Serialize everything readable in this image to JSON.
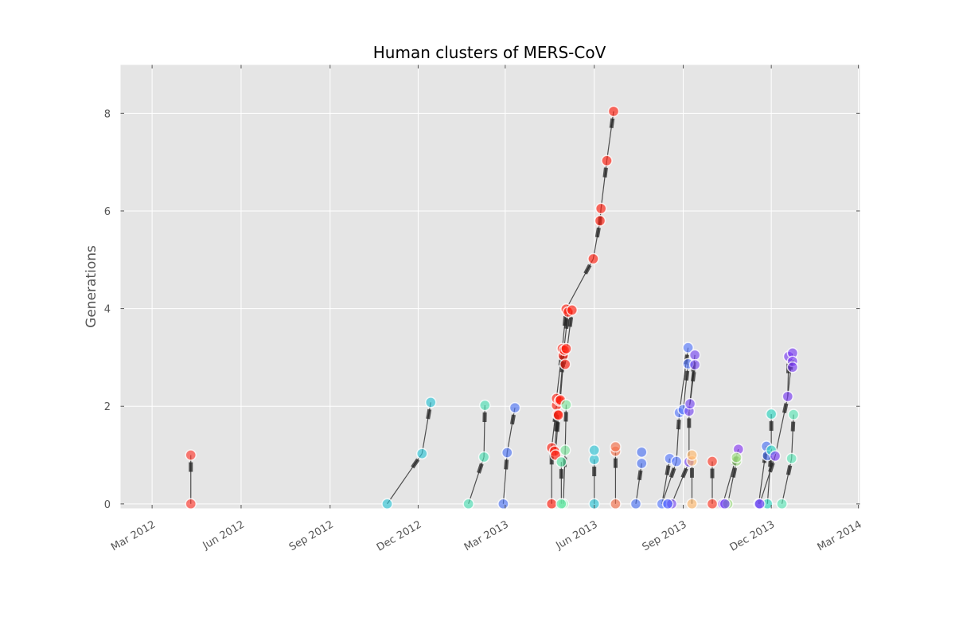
{
  "chart_data": {
    "type": "scatter",
    "title": "Human clusters of MERS-CoV",
    "xlabel": "",
    "ylabel": "Generations",
    "x_scale": "date",
    "xlim": [
      "2012-01-28",
      "2014-03-03"
    ],
    "ylim": [
      -0.1,
      9.0
    ],
    "x_ticks": [
      {
        "date": "2012-03-01",
        "label": "Mar 2012"
      },
      {
        "date": "2012-06-01",
        "label": "Jun 2012"
      },
      {
        "date": "2012-09-01",
        "label": "Sep 2012"
      },
      {
        "date": "2012-12-01",
        "label": "Dec 2012"
      },
      {
        "date": "2013-03-01",
        "label": "Mar 2013"
      },
      {
        "date": "2013-06-01",
        "label": "Jun 2013"
      },
      {
        "date": "2013-09-01",
        "label": "Sep 2013"
      },
      {
        "date": "2013-12-01",
        "label": "Dec 2013"
      },
      {
        "date": "2014-03-01",
        "label": "Mar 2014"
      }
    ],
    "y_ticks": [
      0,
      2,
      4,
      6,
      8
    ],
    "grid": true,
    "background": "#e5e5e5",
    "clusters": [
      {
        "color": "#ff3b2f",
        "points": [
          [
            "2012-04-10",
            0
          ],
          [
            "2012-04-10",
            1
          ]
        ],
        "edges": [
          [
            0,
            1
          ]
        ]
      },
      {
        "color": "#2ec4d6",
        "points": [
          [
            "2012-10-30",
            0
          ],
          [
            "2012-12-05",
            1.03
          ],
          [
            "2012-12-14",
            2.08
          ]
        ],
        "edges": [
          [
            0,
            1
          ],
          [
            1,
            2
          ]
        ]
      },
      {
        "color": "#4fe0b6",
        "points": [
          [
            "2013-01-22",
            0
          ],
          [
            "2013-02-07",
            0.96
          ],
          [
            "2013-02-08",
            2.02
          ]
        ],
        "edges": [
          [
            0,
            1
          ],
          [
            1,
            2
          ]
        ]
      },
      {
        "color": "#4f74f5",
        "points": [
          [
            "2013-02-27",
            0
          ],
          [
            "2013-03-03",
            1.05
          ],
          [
            "2013-03-11",
            1.97
          ]
        ],
        "edges": [
          [
            0,
            1
          ],
          [
            1,
            2
          ]
        ]
      },
      {
        "color": "#ff1e10",
        "points": [
          [
            "2013-04-18",
            0
          ],
          [
            "2013-04-18",
            1.15
          ],
          [
            "2013-04-21",
            1.08
          ],
          [
            "2013-04-22",
            1.0
          ],
          [
            "2013-04-23",
            2.02
          ],
          [
            "2013-04-23",
            2.16
          ],
          [
            "2013-04-24",
            1.83
          ],
          [
            "2013-04-25",
            1.82
          ],
          [
            "2013-04-26",
            2.11
          ],
          [
            "2013-04-27",
            2.13
          ],
          [
            "2013-04-29",
            3.18
          ],
          [
            "2013-04-30",
            3.04
          ],
          [
            "2013-05-01",
            3.15
          ],
          [
            "2013-05-02",
            2.86
          ],
          [
            "2013-05-03",
            3.18
          ],
          [
            "2013-05-03",
            3.99
          ],
          [
            "2013-05-05",
            3.93
          ],
          [
            "2013-05-09",
            3.97
          ],
          [
            "2013-05-31",
            5.02
          ],
          [
            "2013-06-07",
            5.8
          ],
          [
            "2013-06-08",
            6.05
          ],
          [
            "2013-06-14",
            7.03
          ],
          [
            "2013-06-21",
            8.04
          ]
        ],
        "edges": [
          [
            0,
            1
          ],
          [
            1,
            4
          ],
          [
            2,
            6
          ],
          [
            3,
            7
          ],
          [
            5,
            10
          ],
          [
            8,
            11
          ],
          [
            9,
            12
          ],
          [
            10,
            15
          ],
          [
            11,
            16
          ],
          [
            13,
            17
          ],
          [
            15,
            18
          ],
          [
            18,
            19
          ],
          [
            19,
            20
          ],
          [
            20,
            21
          ],
          [
            21,
            22
          ]
        ]
      },
      {
        "color": "#7fe8a0",
        "points": [
          [
            "2013-04-30",
            0
          ],
          [
            "2013-05-02",
            1.1
          ],
          [
            "2013-05-03",
            2.03
          ]
        ],
        "edges": [
          [
            0,
            1
          ],
          [
            1,
            2
          ]
        ]
      },
      {
        "color": "#5ee8a8",
        "points": [
          [
            "2013-04-28",
            0
          ],
          [
            "2013-04-28",
            0.86
          ]
        ],
        "edges": [
          [
            0,
            1
          ]
        ]
      },
      {
        "color": "#2ec4d6",
        "points": [
          [
            "2013-06-01",
            0
          ],
          [
            "2013-06-01",
            0.91
          ],
          [
            "2013-06-01",
            1.1
          ]
        ],
        "edges": [
          [
            0,
            1
          ]
        ]
      },
      {
        "color": "#f5704a",
        "points": [
          [
            "2013-06-23",
            0
          ],
          [
            "2013-06-23",
            1.08
          ],
          [
            "2013-06-23",
            1.17
          ]
        ],
        "edges": [
          [
            0,
            1
          ]
        ]
      },
      {
        "color": "#4f74f5",
        "points": [
          [
            "2013-07-14",
            0
          ],
          [
            "2013-07-20",
            1.06
          ],
          [
            "2013-07-20",
            0.83
          ]
        ],
        "edges": [
          [
            0,
            2
          ]
        ]
      },
      {
        "color": "#5a7dff",
        "points": [
          [
            "2013-08-10",
            0
          ],
          [
            "2013-08-18",
            0.93
          ],
          [
            "2013-08-25",
            0.87
          ],
          [
            "2013-08-28",
            1.87
          ],
          [
            "2013-09-01",
            1.93
          ],
          [
            "2013-09-06",
            3.2
          ],
          [
            "2013-09-06",
            2.87
          ]
        ],
        "edges": [
          [
            0,
            1
          ],
          [
            0,
            2
          ],
          [
            2,
            3
          ],
          [
            3,
            5
          ],
          [
            4,
            6
          ]
        ]
      },
      {
        "color": "#7a4cf2",
        "points": [
          [
            "2013-08-20",
            0
          ],
          [
            "2013-09-07",
            0.86
          ],
          [
            "2013-09-07",
            1.9
          ],
          [
            "2013-09-08",
            2.05
          ],
          [
            "2013-09-13",
            3.05
          ],
          [
            "2013-09-13",
            2.85
          ]
        ],
        "edges": [
          [
            0,
            1
          ],
          [
            1,
            2
          ],
          [
            2,
            4
          ],
          [
            3,
            5
          ]
        ]
      },
      {
        "color": "#4a5cff",
        "points": [
          [
            "2013-08-16",
            0
          ]
        ],
        "edges": []
      },
      {
        "color": "#ffba6e",
        "points": [
          [
            "2013-09-10",
            0
          ],
          [
            "2013-09-10",
            0.88
          ],
          [
            "2013-09-10",
            1.0
          ]
        ],
        "edges": [
          [
            0,
            1
          ]
        ]
      },
      {
        "color": "#ff3a28",
        "points": [
          [
            "2013-10-01",
            0
          ],
          [
            "2013-10-01",
            0.87
          ]
        ],
        "edges": [
          [
            0,
            1
          ]
        ]
      },
      {
        "color": "#8a3cf5",
        "points": [
          [
            "2013-10-12",
            0
          ],
          [
            "2013-10-28",
            1.12
          ]
        ],
        "edges": [
          [
            0,
            1
          ]
        ]
      },
      {
        "color": "#9bdc7c",
        "points": [
          [
            "2013-10-17",
            0
          ],
          [
            "2013-10-26",
            0.88
          ],
          [
            "2013-10-26",
            0.95
          ]
        ],
        "edges": [
          [
            0,
            1
          ]
        ]
      },
      {
        "color": "#6a3cf5",
        "points": [
          [
            "2013-10-14",
            0
          ]
        ],
        "edges": []
      },
      {
        "color": "#4f74f5",
        "points": [
          [
            "2013-11-18",
            0
          ],
          [
            "2013-11-26",
            1.18
          ],
          [
            "2013-11-27",
            0.99
          ]
        ],
        "edges": [
          [
            0,
            1
          ]
        ]
      },
      {
        "color": "#2ed6c0",
        "points": [
          [
            "2013-11-27",
            0
          ],
          [
            "2013-12-01",
            1.1
          ],
          [
            "2013-12-01",
            1.84
          ]
        ],
        "edges": [
          [
            0,
            1
          ],
          [
            1,
            2
          ]
        ]
      },
      {
        "color": "#7a3cf2",
        "points": [
          [
            "2013-11-19",
            0
          ],
          [
            "2013-12-05",
            0.98
          ],
          [
            "2013-12-18",
            2.2
          ],
          [
            "2013-12-19",
            3.02
          ],
          [
            "2013-12-23",
            3.09
          ],
          [
            "2013-12-23",
            2.92
          ],
          [
            "2013-12-23",
            2.8
          ]
        ],
        "edges": [
          [
            0,
            1
          ],
          [
            1,
            2
          ],
          [
            2,
            3
          ],
          [
            2,
            4
          ]
        ]
      },
      {
        "color": "#5ee8b8",
        "points": [
          [
            "2013-12-12",
            0
          ],
          [
            "2013-12-22",
            0.93
          ],
          [
            "2013-12-24",
            1.83
          ]
        ],
        "edges": [
          [
            0,
            1
          ],
          [
            1,
            2
          ]
        ]
      }
    ]
  }
}
